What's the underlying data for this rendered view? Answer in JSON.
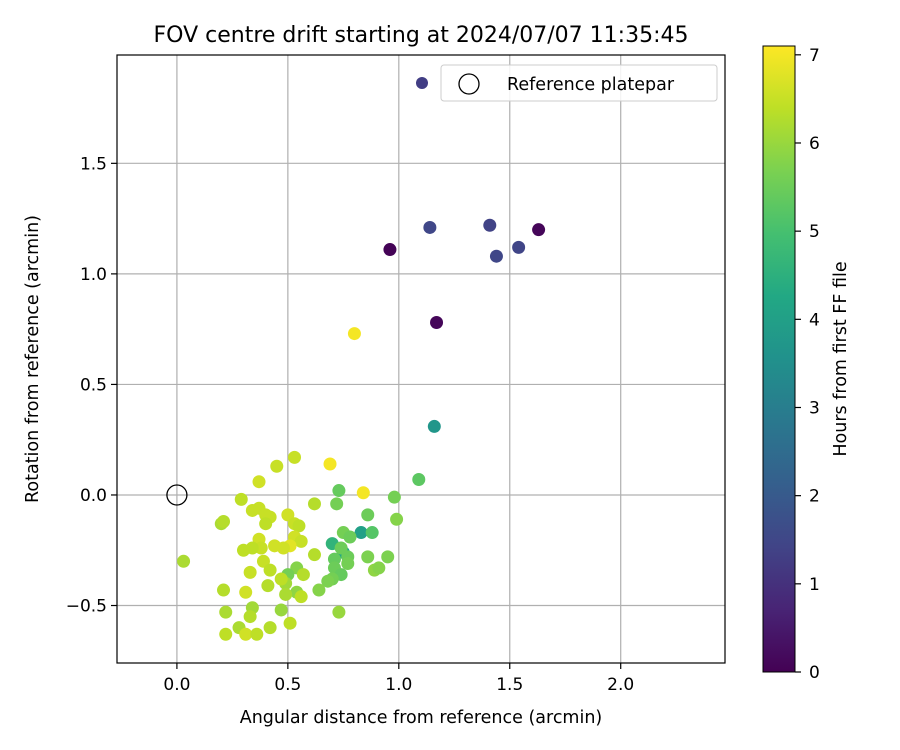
{
  "chart_data": {
    "type": "scatter",
    "title": "FOV centre drift starting at 2024/07/07 11:35:45",
    "xlabel": "Angular distance from reference (arcmin)",
    "ylabel": "Rotation from reference (arcmin)",
    "xlim": [
      -0.27,
      2.47
    ],
    "ylim": [
      -0.76,
      1.99
    ],
    "xticks": [
      0.0,
      0.5,
      1.0,
      1.5,
      2.0
    ],
    "xtick_labels": [
      "0.0",
      "0.5",
      "1.0",
      "1.5",
      "2.0"
    ],
    "yticks": [
      -0.5,
      0.0,
      0.5,
      1.0,
      1.5
    ],
    "ytick_labels": [
      "−0.5",
      "0.0",
      "0.5",
      "1.0",
      "1.5"
    ],
    "grid": true,
    "legend_placement": "top-right",
    "legend_entries": [
      "",
      "Reference platepar"
    ],
    "colorbar": {
      "label": "Hours from first FF file",
      "range": [
        0,
        7.1
      ],
      "ticks": [
        0,
        1,
        2,
        3,
        4,
        5,
        6,
        7
      ],
      "tick_labels": [
        "0",
        "1",
        "2",
        "3",
        "4",
        "5",
        "6",
        "7"
      ],
      "colormap": "viridis"
    },
    "reference_point": {
      "x": 0.0,
      "y": 0.0,
      "label": "Reference platepar"
    },
    "points": [
      {
        "x": 0.96,
        "y": 1.11,
        "c": 0.05
      },
      {
        "x": 1.63,
        "y": 1.2,
        "c": 0.1
      },
      {
        "x": 1.17,
        "y": 0.78,
        "c": 0.1
      },
      {
        "x": 1.14,
        "y": 1.21,
        "c": 1.5
      },
      {
        "x": 1.41,
        "y": 1.22,
        "c": 1.4
      },
      {
        "x": 1.44,
        "y": 1.08,
        "c": 1.5
      },
      {
        "x": 1.54,
        "y": 1.12,
        "c": 1.45
      },
      {
        "x": 1.16,
        "y": 0.31,
        "c": 3.7
      },
      {
        "x": 0.8,
        "y": 0.73,
        "c": 7.0
      },
      {
        "x": 1.09,
        "y": 0.07,
        "c": 5.3
      },
      {
        "x": 0.83,
        "y": -0.17,
        "c": 4.0
      },
      {
        "x": 0.75,
        "y": -0.26,
        "c": 4.2
      },
      {
        "x": 0.7,
        "y": -0.22,
        "c": 4.6
      },
      {
        "x": 0.53,
        "y": 0.17,
        "c": 6.5
      },
      {
        "x": 0.45,
        "y": 0.13,
        "c": 6.5
      },
      {
        "x": 0.69,
        "y": 0.14,
        "c": 7.0
      },
      {
        "x": 0.84,
        "y": 0.01,
        "c": 7.0
      },
      {
        "x": 0.73,
        "y": 0.02,
        "c": 5.4
      },
      {
        "x": 0.72,
        "y": -0.04,
        "c": 5.6
      },
      {
        "x": 0.62,
        "y": -0.04,
        "c": 6.3
      },
      {
        "x": 0.86,
        "y": -0.09,
        "c": 5.5
      },
      {
        "x": 0.88,
        "y": -0.17,
        "c": 5.2
      },
      {
        "x": 0.98,
        "y": -0.01,
        "c": 5.6
      },
      {
        "x": 0.99,
        "y": -0.11,
        "c": 5.8
      },
      {
        "x": 0.75,
        "y": -0.17,
        "c": 5.6
      },
      {
        "x": 0.78,
        "y": -0.19,
        "c": 5.5
      },
      {
        "x": 0.74,
        "y": -0.24,
        "c": 5.5
      },
      {
        "x": 0.77,
        "y": -0.28,
        "c": 5.5
      },
      {
        "x": 0.71,
        "y": -0.29,
        "c": 5.4
      },
      {
        "x": 0.77,
        "y": -0.31,
        "c": 5.6
      },
      {
        "x": 0.71,
        "y": -0.33,
        "c": 5.5
      },
      {
        "x": 0.74,
        "y": -0.36,
        "c": 5.4
      },
      {
        "x": 0.7,
        "y": -0.38,
        "c": 5.6
      },
      {
        "x": 0.68,
        "y": -0.39,
        "c": 5.7
      },
      {
        "x": 0.64,
        "y": -0.43,
        "c": 5.8
      },
      {
        "x": 0.86,
        "y": -0.28,
        "c": 5.7
      },
      {
        "x": 0.89,
        "y": -0.34,
        "c": 5.9
      },
      {
        "x": 0.91,
        "y": -0.33,
        "c": 5.8
      },
      {
        "x": 0.95,
        "y": -0.28,
        "c": 5.7
      },
      {
        "x": 0.73,
        "y": -0.53,
        "c": 6.0
      },
      {
        "x": 0.62,
        "y": -0.27,
        "c": 6.3
      },
      {
        "x": 0.54,
        "y": -0.33,
        "c": 5.8
      },
      {
        "x": 0.54,
        "y": -0.44,
        "c": 5.9
      },
      {
        "x": 0.57,
        "y": -0.36,
        "c": 6.3
      },
      {
        "x": 0.5,
        "y": -0.36,
        "c": 5.6
      },
      {
        "x": 0.49,
        "y": -0.4,
        "c": 6.1
      },
      {
        "x": 0.47,
        "y": -0.38,
        "c": 6.4
      },
      {
        "x": 0.49,
        "y": -0.45,
        "c": 6.2
      },
      {
        "x": 0.56,
        "y": -0.46,
        "c": 6.4
      },
      {
        "x": 0.47,
        "y": -0.52,
        "c": 6.0
      },
      {
        "x": 0.51,
        "y": -0.58,
        "c": 6.4
      },
      {
        "x": 0.37,
        "y": 0.06,
        "c": 6.6
      },
      {
        "x": 0.29,
        "y": -0.02,
        "c": 6.4
      },
      {
        "x": 0.34,
        "y": -0.07,
        "c": 6.5
      },
      {
        "x": 0.37,
        "y": -0.06,
        "c": 6.5
      },
      {
        "x": 0.4,
        "y": -0.09,
        "c": 6.5
      },
      {
        "x": 0.42,
        "y": -0.1,
        "c": 6.5
      },
      {
        "x": 0.4,
        "y": -0.13,
        "c": 6.4
      },
      {
        "x": 0.5,
        "y": -0.09,
        "c": 6.6
      },
      {
        "x": 0.53,
        "y": -0.13,
        "c": 6.5
      },
      {
        "x": 0.55,
        "y": -0.14,
        "c": 6.4
      },
      {
        "x": 0.53,
        "y": -0.19,
        "c": 6.6
      },
      {
        "x": 0.56,
        "y": -0.21,
        "c": 6.5
      },
      {
        "x": 0.51,
        "y": -0.23,
        "c": 6.8
      },
      {
        "x": 0.48,
        "y": -0.24,
        "c": 6.6
      },
      {
        "x": 0.44,
        "y": -0.23,
        "c": 6.6
      },
      {
        "x": 0.37,
        "y": -0.2,
        "c": 6.6
      },
      {
        "x": 0.38,
        "y": -0.24,
        "c": 6.5
      },
      {
        "x": 0.34,
        "y": -0.24,
        "c": 6.4
      },
      {
        "x": 0.3,
        "y": -0.25,
        "c": 6.4
      },
      {
        "x": 0.39,
        "y": -0.3,
        "c": 6.5
      },
      {
        "x": 0.42,
        "y": -0.34,
        "c": 6.4
      },
      {
        "x": 0.33,
        "y": -0.35,
        "c": 6.5
      },
      {
        "x": 0.41,
        "y": -0.41,
        "c": 6.3
      },
      {
        "x": 0.31,
        "y": -0.44,
        "c": 6.6
      },
      {
        "x": 0.2,
        "y": -0.13,
        "c": 6.2
      },
      {
        "x": 0.21,
        "y": -0.12,
        "c": 6.3
      },
      {
        "x": 0.03,
        "y": -0.3,
        "c": 6.2
      },
      {
        "x": 0.21,
        "y": -0.43,
        "c": 6.3
      },
      {
        "x": 0.22,
        "y": -0.53,
        "c": 6.2
      },
      {
        "x": 0.34,
        "y": -0.51,
        "c": 6.1
      },
      {
        "x": 0.33,
        "y": -0.55,
        "c": 6.3
      },
      {
        "x": 0.28,
        "y": -0.6,
        "c": 6.2
      },
      {
        "x": 0.22,
        "y": -0.63,
        "c": 6.4
      },
      {
        "x": 0.31,
        "y": -0.63,
        "c": 6.6
      },
      {
        "x": 0.36,
        "y": -0.63,
        "c": 6.4
      },
      {
        "x": 0.42,
        "y": -0.6,
        "c": 6.3
      }
    ]
  }
}
